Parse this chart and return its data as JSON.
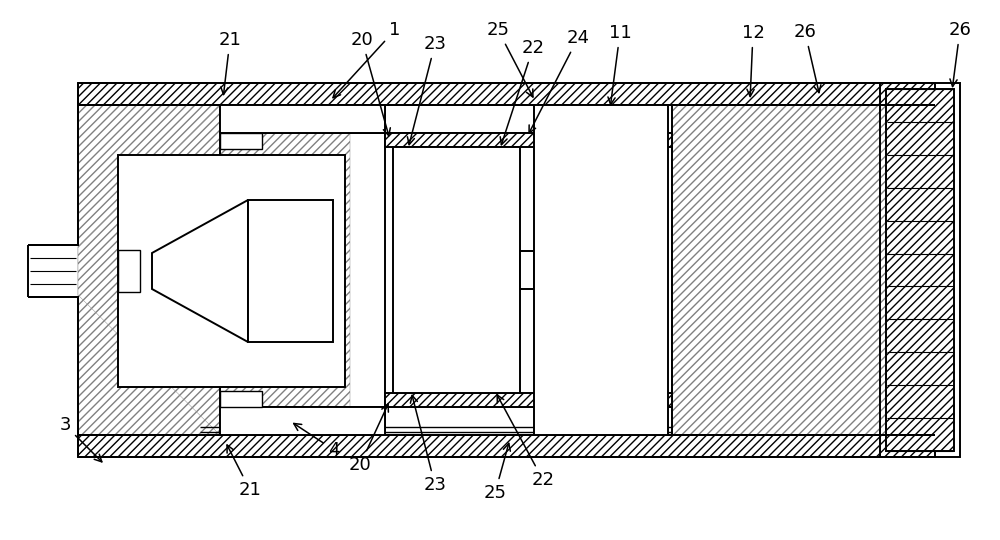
{
  "bg_color": "#ffffff",
  "line_color": "#000000",
  "fig_width": 10.0,
  "fig_height": 5.4,
  "dpi": 100
}
